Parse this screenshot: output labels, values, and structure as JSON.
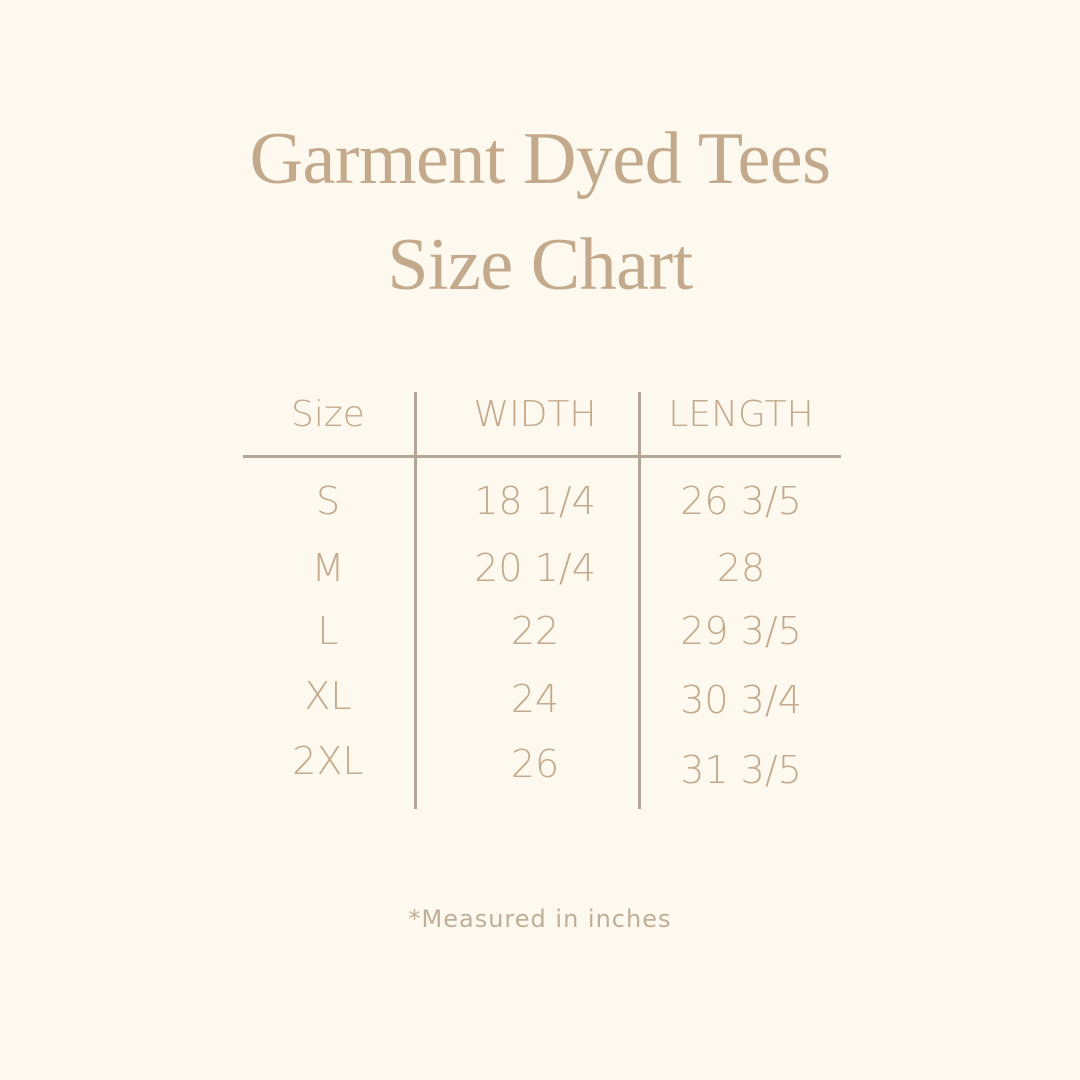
{
  "title": {
    "line1": "Garment Dyed Tees",
    "line2": "Size Chart"
  },
  "table": {
    "headers": [
      "Size",
      "WIDTH",
      "LENGTH"
    ],
    "rows": [
      [
        "S",
        "18 1/4",
        "26 3/5"
      ],
      [
        "M",
        "20 1/4",
        "28"
      ],
      [
        "L",
        "22",
        "29 3/5"
      ],
      [
        "XL",
        "24",
        "30 3/4"
      ],
      [
        "2XL",
        "26",
        "31 3/5"
      ]
    ]
  },
  "note": "*Measured in inches",
  "colors": {
    "background": "#fef9ef",
    "text": "#c3aa8c",
    "rules": "#b3a696"
  }
}
